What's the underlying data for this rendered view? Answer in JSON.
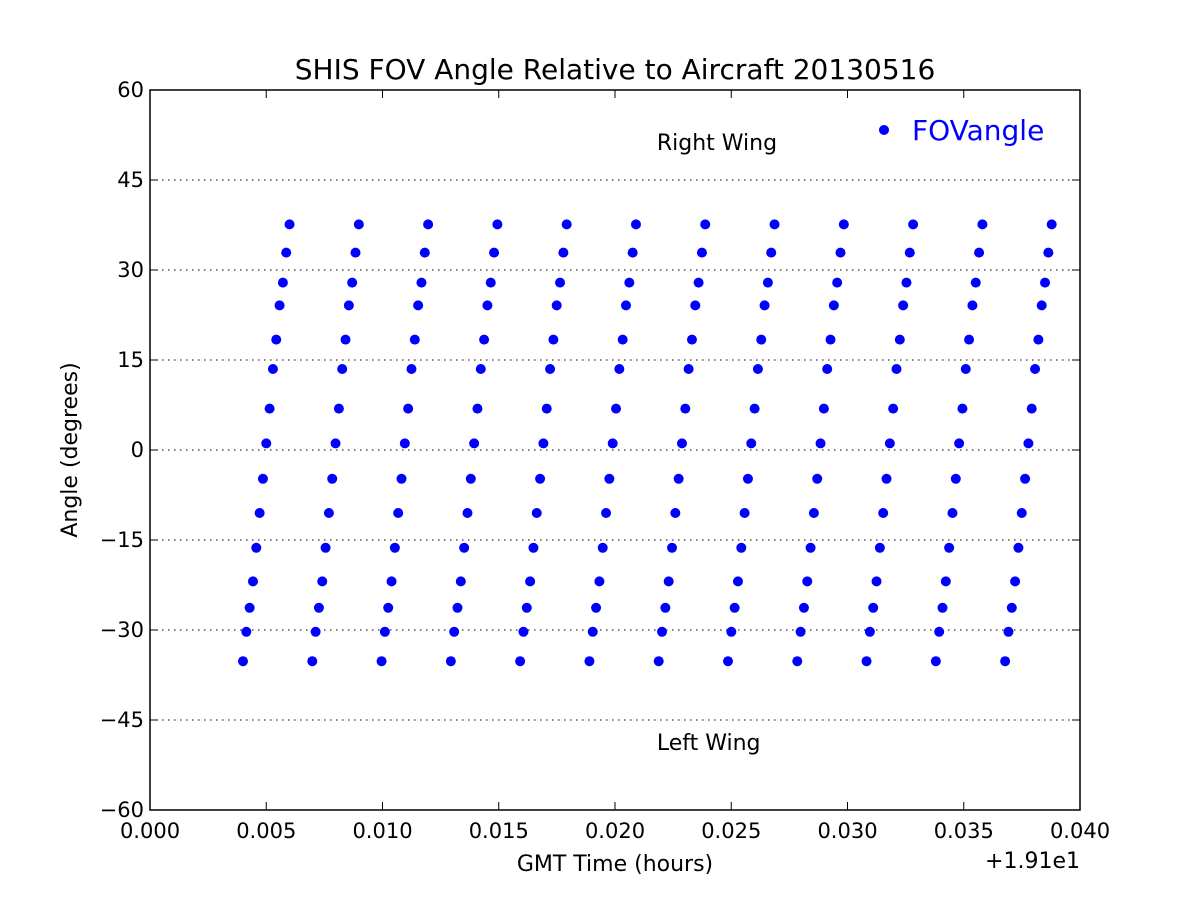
{
  "chart_data": {
    "type": "scatter",
    "title": "SHIS FOV Angle Relative to Aircraft 20130516",
    "xlabel": "GMT Time (hours)",
    "ylabel": "Angle (degrees)",
    "x_offset_label": "+1.91e1",
    "xlim": [
      0.0,
      0.04
    ],
    "ylim": [
      -60,
      60
    ],
    "x_ticks": [
      0.0,
      0.005,
      0.01,
      0.015,
      0.02,
      0.025,
      0.03,
      0.035,
      0.04
    ],
    "x_tick_labels": [
      "0.000",
      "0.005",
      "0.010",
      "0.015",
      "0.020",
      "0.025",
      "0.030",
      "0.035",
      "0.040"
    ],
    "y_ticks": [
      -60,
      -45,
      -30,
      -15,
      0,
      15,
      30,
      45,
      60
    ],
    "y_tick_labels": [
      "−60",
      "−45",
      "−30",
      "−15",
      "0",
      "15",
      "30",
      "45",
      "60"
    ],
    "grid": "horizontal-dotted",
    "legend": {
      "position": "top-right",
      "entries": [
        "FOVangle"
      ]
    },
    "annotations": [
      {
        "text": "Right Wing",
        "x": 0.0218,
        "y": 50
      },
      {
        "text": "Left Wing",
        "x": 0.0218,
        "y": -50
      }
    ],
    "series": [
      {
        "name": "FOVangle",
        "color": "#0000ff",
        "angles": [
          -35.2,
          -30.3,
          -26.3,
          -21.9,
          -16.3,
          -10.5,
          -4.8,
          1.1,
          6.9,
          13.5,
          18.4,
          24.1,
          27.9,
          32.9,
          37.6
        ],
        "scan_start_times": [
          0.004,
          0.00698,
          0.00996,
          0.01294,
          0.01592,
          0.0189,
          0.02188,
          0.02486,
          0.02784,
          0.03082,
          0.0338,
          0.03678
        ],
        "time_step_within_scan": 0.000143,
        "last_scan_start_time": 0.03678
      }
    ]
  }
}
